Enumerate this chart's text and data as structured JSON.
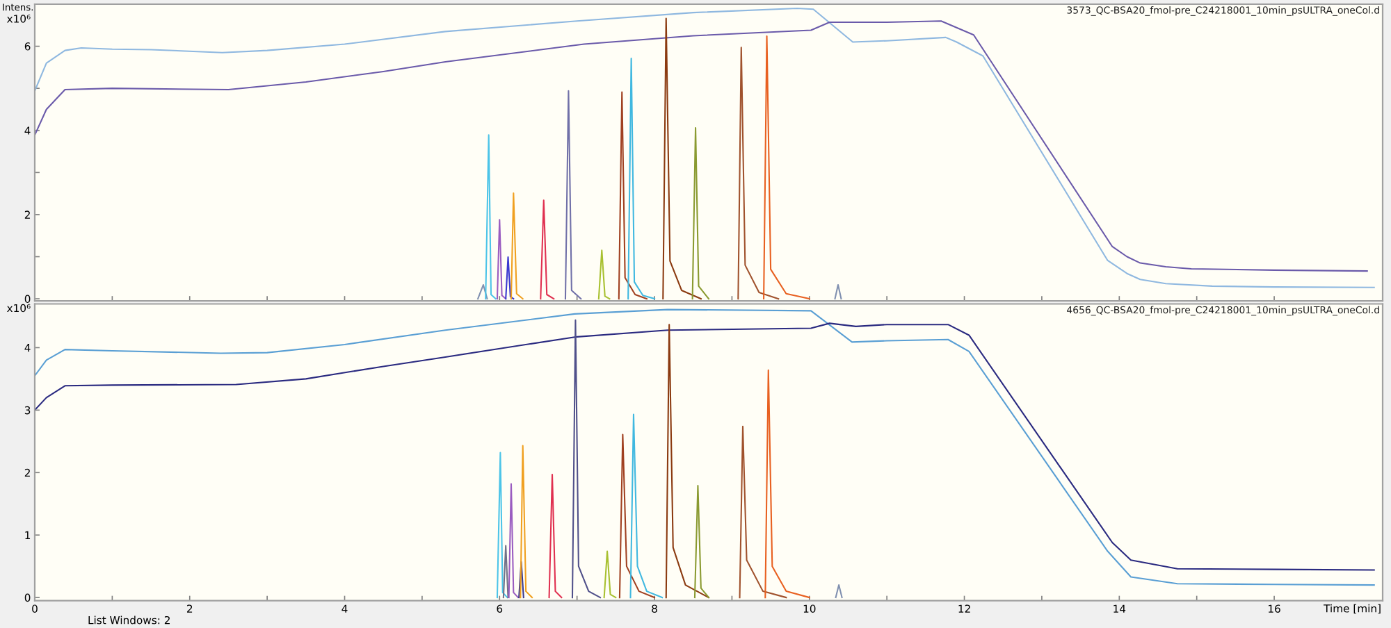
{
  "chart_data": [
    {
      "type": "line",
      "title": "3573_QC-BSA20_fmol-pre_C24218001_10min_psULTRA_oneCol.d",
      "ylabel": "Intens.",
      "annotations": [
        "x10⁶"
      ],
      "xlim": [
        0,
        17.4
      ],
      "xticks": [
        0,
        {
          "value": 1,
          "label": null
        },
        2,
        {
          "value": 3,
          "label": null
        },
        4,
        {
          "value": 5,
          "label": null
        },
        6,
        {
          "value": 7,
          "label": null
        },
        8,
        {
          "value": 9,
          "label": null
        },
        10,
        {
          "value": 11,
          "label": null
        },
        12,
        {
          "value": 13,
          "label": null
        },
        14,
        {
          "value": 15,
          "label": null
        },
        16
      ],
      "ylim": [
        -0.05,
        7.0
      ],
      "yticks": [
        0,
        {
          "value": 1,
          "label": null
        },
        2,
        {
          "value": 3,
          "label": null
        },
        4,
        {
          "value": 5,
          "label": null
        },
        6
      ],
      "tick_labels": "y",
      "line_style": "solid",
      "series": [
        {
          "color": "#8fb8e0",
          "x": [
            0,
            0.15,
            0.39,
            0.6,
            1.0,
            1.5,
            2.42,
            3.0,
            4.0,
            5.3,
            7.0,
            8.5,
            9.84,
            10.05,
            10.56,
            11.0,
            11.76,
            11.9,
            12.24,
            13.85,
            14.1,
            14.27,
            14.6,
            15.2,
            16.0,
            17.29
          ],
          "values": [
            4.94,
            5.6,
            5.9,
            5.96,
            5.93,
            5.92,
            5.85,
            5.9,
            6.05,
            6.35,
            6.6,
            6.8,
            6.9,
            6.88,
            6.1,
            6.13,
            6.21,
            6.1,
            5.77,
            0.91,
            0.6,
            0.46,
            0.36,
            0.3,
            0.28,
            0.27
          ]
        },
        {
          "color": "#6a5aaa",
          "x": [
            0,
            0.15,
            0.39,
            1.0,
            2.5,
            3.5,
            4.5,
            5.3,
            7.09,
            8.5,
            10.02,
            10.26,
            11.0,
            11.7,
            12.12,
            13.91,
            14.1,
            14.27,
            14.6,
            14.93,
            16.0,
            17.2
          ],
          "values": [
            3.89,
            4.5,
            4.97,
            5.0,
            4.97,
            5.15,
            5.4,
            5.63,
            6.05,
            6.25,
            6.38,
            6.57,
            6.57,
            6.6,
            6.27,
            1.24,
            1.0,
            0.85,
            0.76,
            0.71,
            0.68,
            0.66
          ]
        },
        {
          "color": "#8090b0",
          "x": [
            5.72,
            5.79,
            5.84
          ],
          "values": [
            0,
            0.33,
            0
          ]
        },
        {
          "color": "#4cc4e8",
          "x": [
            5.82,
            5.86,
            5.89,
            5.95
          ],
          "values": [
            0,
            3.89,
            0.1,
            0
          ]
        },
        {
          "color": "#9a5cc0",
          "x": [
            5.97,
            6.0,
            6.03,
            6.08
          ],
          "values": [
            0,
            1.88,
            0.08,
            0
          ]
        },
        {
          "color": "#3a3ad0",
          "x": [
            6.08,
            6.11,
            6.14,
            6.18
          ],
          "values": [
            0,
            0.99,
            0.05,
            0
          ]
        },
        {
          "color": "#f0a020",
          "x": [
            6.15,
            6.18,
            6.22,
            6.3
          ],
          "values": [
            0,
            2.51,
            0.12,
            0
          ]
        },
        {
          "color": "#e03050",
          "x": [
            6.53,
            6.57,
            6.61,
            6.7
          ],
          "values": [
            0,
            2.34,
            0.1,
            0
          ]
        },
        {
          "color": "#7070a8",
          "x": [
            6.85,
            6.89,
            6.93,
            7.05
          ],
          "values": [
            0,
            4.94,
            0.2,
            0
          ]
        },
        {
          "color": "#a8c030",
          "x": [
            7.28,
            7.32,
            7.36,
            7.42
          ],
          "values": [
            0,
            1.15,
            0.06,
            0
          ]
        },
        {
          "color": "#a04020",
          "x": [
            7.54,
            7.58,
            7.62,
            7.75,
            7.9
          ],
          "values": [
            0,
            4.91,
            0.5,
            0.1,
            0
          ]
        },
        {
          "color": "#40b8e0",
          "x": [
            7.66,
            7.7,
            7.74,
            7.85,
            8.0
          ],
          "values": [
            0,
            5.71,
            0.4,
            0.08,
            0
          ]
        },
        {
          "color": "#8b3a10",
          "x": [
            8.11,
            8.15,
            8.2,
            8.35,
            8.6
          ],
          "values": [
            0,
            6.66,
            0.9,
            0.2,
            0
          ]
        },
        {
          "color": "#8a9a30",
          "x": [
            8.49,
            8.53,
            8.57,
            8.7
          ],
          "values": [
            0,
            4.06,
            0.3,
            0
          ]
        },
        {
          "color": "#a0522d",
          "x": [
            9.08,
            9.12,
            9.17,
            9.35,
            9.6
          ],
          "values": [
            0,
            5.97,
            0.8,
            0.15,
            0
          ]
        },
        {
          "color": "#e86020",
          "x": [
            9.41,
            9.45,
            9.5,
            9.7,
            10.0
          ],
          "values": [
            0,
            6.24,
            0.7,
            0.12,
            0
          ]
        },
        {
          "color": "#8090b0",
          "x": [
            10.33,
            10.37,
            10.41
          ],
          "values": [
            0,
            0.33,
            0
          ]
        }
      ]
    },
    {
      "type": "line",
      "title": "4656_QC-BSA20_fmol-pre_C24218001_10min_psULTRA_oneCol.d",
      "xlabel": "Time [min]",
      "annotations": [
        "x10⁶",
        "List Windows: 2"
      ],
      "xlim": [
        0,
        17.4
      ],
      "xticks": [
        0,
        {
          "value": 1,
          "label": null
        },
        2,
        {
          "value": 3,
          "label": null
        },
        4,
        {
          "value": 5,
          "label": null
        },
        6,
        {
          "value": 7,
          "label": null
        },
        8,
        {
          "value": 9,
          "label": null
        },
        10,
        {
          "value": 11,
          "label": null
        },
        12,
        {
          "value": 13,
          "label": null
        },
        14,
        {
          "value": 15,
          "label": null
        },
        16
      ],
      "ylim": [
        -0.05,
        4.7
      ],
      "yticks": [
        0,
        1,
        2,
        3,
        4
      ],
      "line_style": "solid",
      "series": [
        {
          "color": "#5a9fd4",
          "x": [
            0,
            0.15,
            0.39,
            1.0,
            2.4,
            3.0,
            4.0,
            5.3,
            6.97,
            8.17,
            10.02,
            10.55,
            11.0,
            11.79,
            12.06,
            13.85,
            14.15,
            14.75,
            16.0,
            17.29
          ],
          "values": [
            3.55,
            3.8,
            3.97,
            3.95,
            3.91,
            3.92,
            4.05,
            4.28,
            4.54,
            4.61,
            4.59,
            4.09,
            4.11,
            4.13,
            3.94,
            0.74,
            0.33,
            0.22,
            0.21,
            0.2
          ]
        },
        {
          "color": "#2a2a80",
          "x": [
            0,
            0.15,
            0.39,
            1.0,
            2.6,
            3.5,
            4.5,
            5.3,
            6.97,
            8.17,
            10.02,
            10.26,
            10.6,
            11.0,
            11.79,
            12.06,
            13.91,
            14.15,
            14.75,
            16.0,
            17.29
          ],
          "values": [
            3.0,
            3.2,
            3.39,
            3.4,
            3.41,
            3.5,
            3.7,
            3.85,
            4.17,
            4.28,
            4.31,
            4.39,
            4.34,
            4.37,
            4.37,
            4.2,
            0.88,
            0.6,
            0.46,
            0.45,
            0.44
          ]
        },
        {
          "color": "#4cc4e8",
          "x": [
            5.97,
            6.01,
            6.04,
            6.1
          ],
          "values": [
            0,
            2.32,
            0.08,
            0
          ]
        },
        {
          "color": "#707088",
          "x": [
            6.05,
            6.08,
            6.11
          ],
          "values": [
            0,
            0.83,
            0
          ]
        },
        {
          "color": "#9a5cc0",
          "x": [
            6.12,
            6.15,
            6.18,
            6.24
          ],
          "values": [
            0,
            1.82,
            0.08,
            0
          ]
        },
        {
          "color": "#3a3a90",
          "x": [
            6.25,
            6.28,
            6.31
          ],
          "values": [
            0,
            0.57,
            0
          ]
        },
        {
          "color": "#f0a020",
          "x": [
            6.27,
            6.3,
            6.34,
            6.42
          ],
          "values": [
            0,
            2.43,
            0.1,
            0
          ]
        },
        {
          "color": "#e03050",
          "x": [
            6.64,
            6.68,
            6.72,
            6.8
          ],
          "values": [
            0,
            1.97,
            0.1,
            0
          ]
        },
        {
          "color": "#50508a",
          "x": [
            6.94,
            6.98,
            7.02,
            7.15,
            7.3
          ],
          "values": [
            0,
            4.44,
            0.5,
            0.1,
            0
          ]
        },
        {
          "color": "#a8c030",
          "x": [
            7.35,
            7.39,
            7.43,
            7.5
          ],
          "values": [
            0,
            0.74,
            0.05,
            0
          ]
        },
        {
          "color": "#a04020",
          "x": [
            7.55,
            7.59,
            7.64,
            7.8,
            8.0
          ],
          "values": [
            0,
            2.61,
            0.5,
            0.1,
            0
          ]
        },
        {
          "color": "#40b8e0",
          "x": [
            7.69,
            7.73,
            7.78,
            7.9,
            8.1
          ],
          "values": [
            0,
            2.93,
            0.5,
            0.1,
            0
          ]
        },
        {
          "color": "#8b3a10",
          "x": [
            8.15,
            8.19,
            8.24,
            8.4,
            8.7
          ],
          "values": [
            0,
            4.37,
            0.8,
            0.2,
            0
          ]
        },
        {
          "color": "#8a9a30",
          "x": [
            8.52,
            8.56,
            8.6,
            8.7
          ],
          "values": [
            0,
            1.79,
            0.15,
            0
          ]
        },
        {
          "color": "#a0522d",
          "x": [
            9.1,
            9.14,
            9.19,
            9.4,
            9.7
          ],
          "values": [
            0,
            2.74,
            0.6,
            0.1,
            0
          ]
        },
        {
          "color": "#e86020",
          "x": [
            9.43,
            9.47,
            9.52,
            9.7,
            10.0
          ],
          "values": [
            0,
            3.64,
            0.5,
            0.1,
            0
          ]
        },
        {
          "color": "#8090b0",
          "x": [
            10.34,
            10.38,
            10.42
          ],
          "values": [
            0,
            0.2,
            0
          ]
        }
      ]
    }
  ]
}
